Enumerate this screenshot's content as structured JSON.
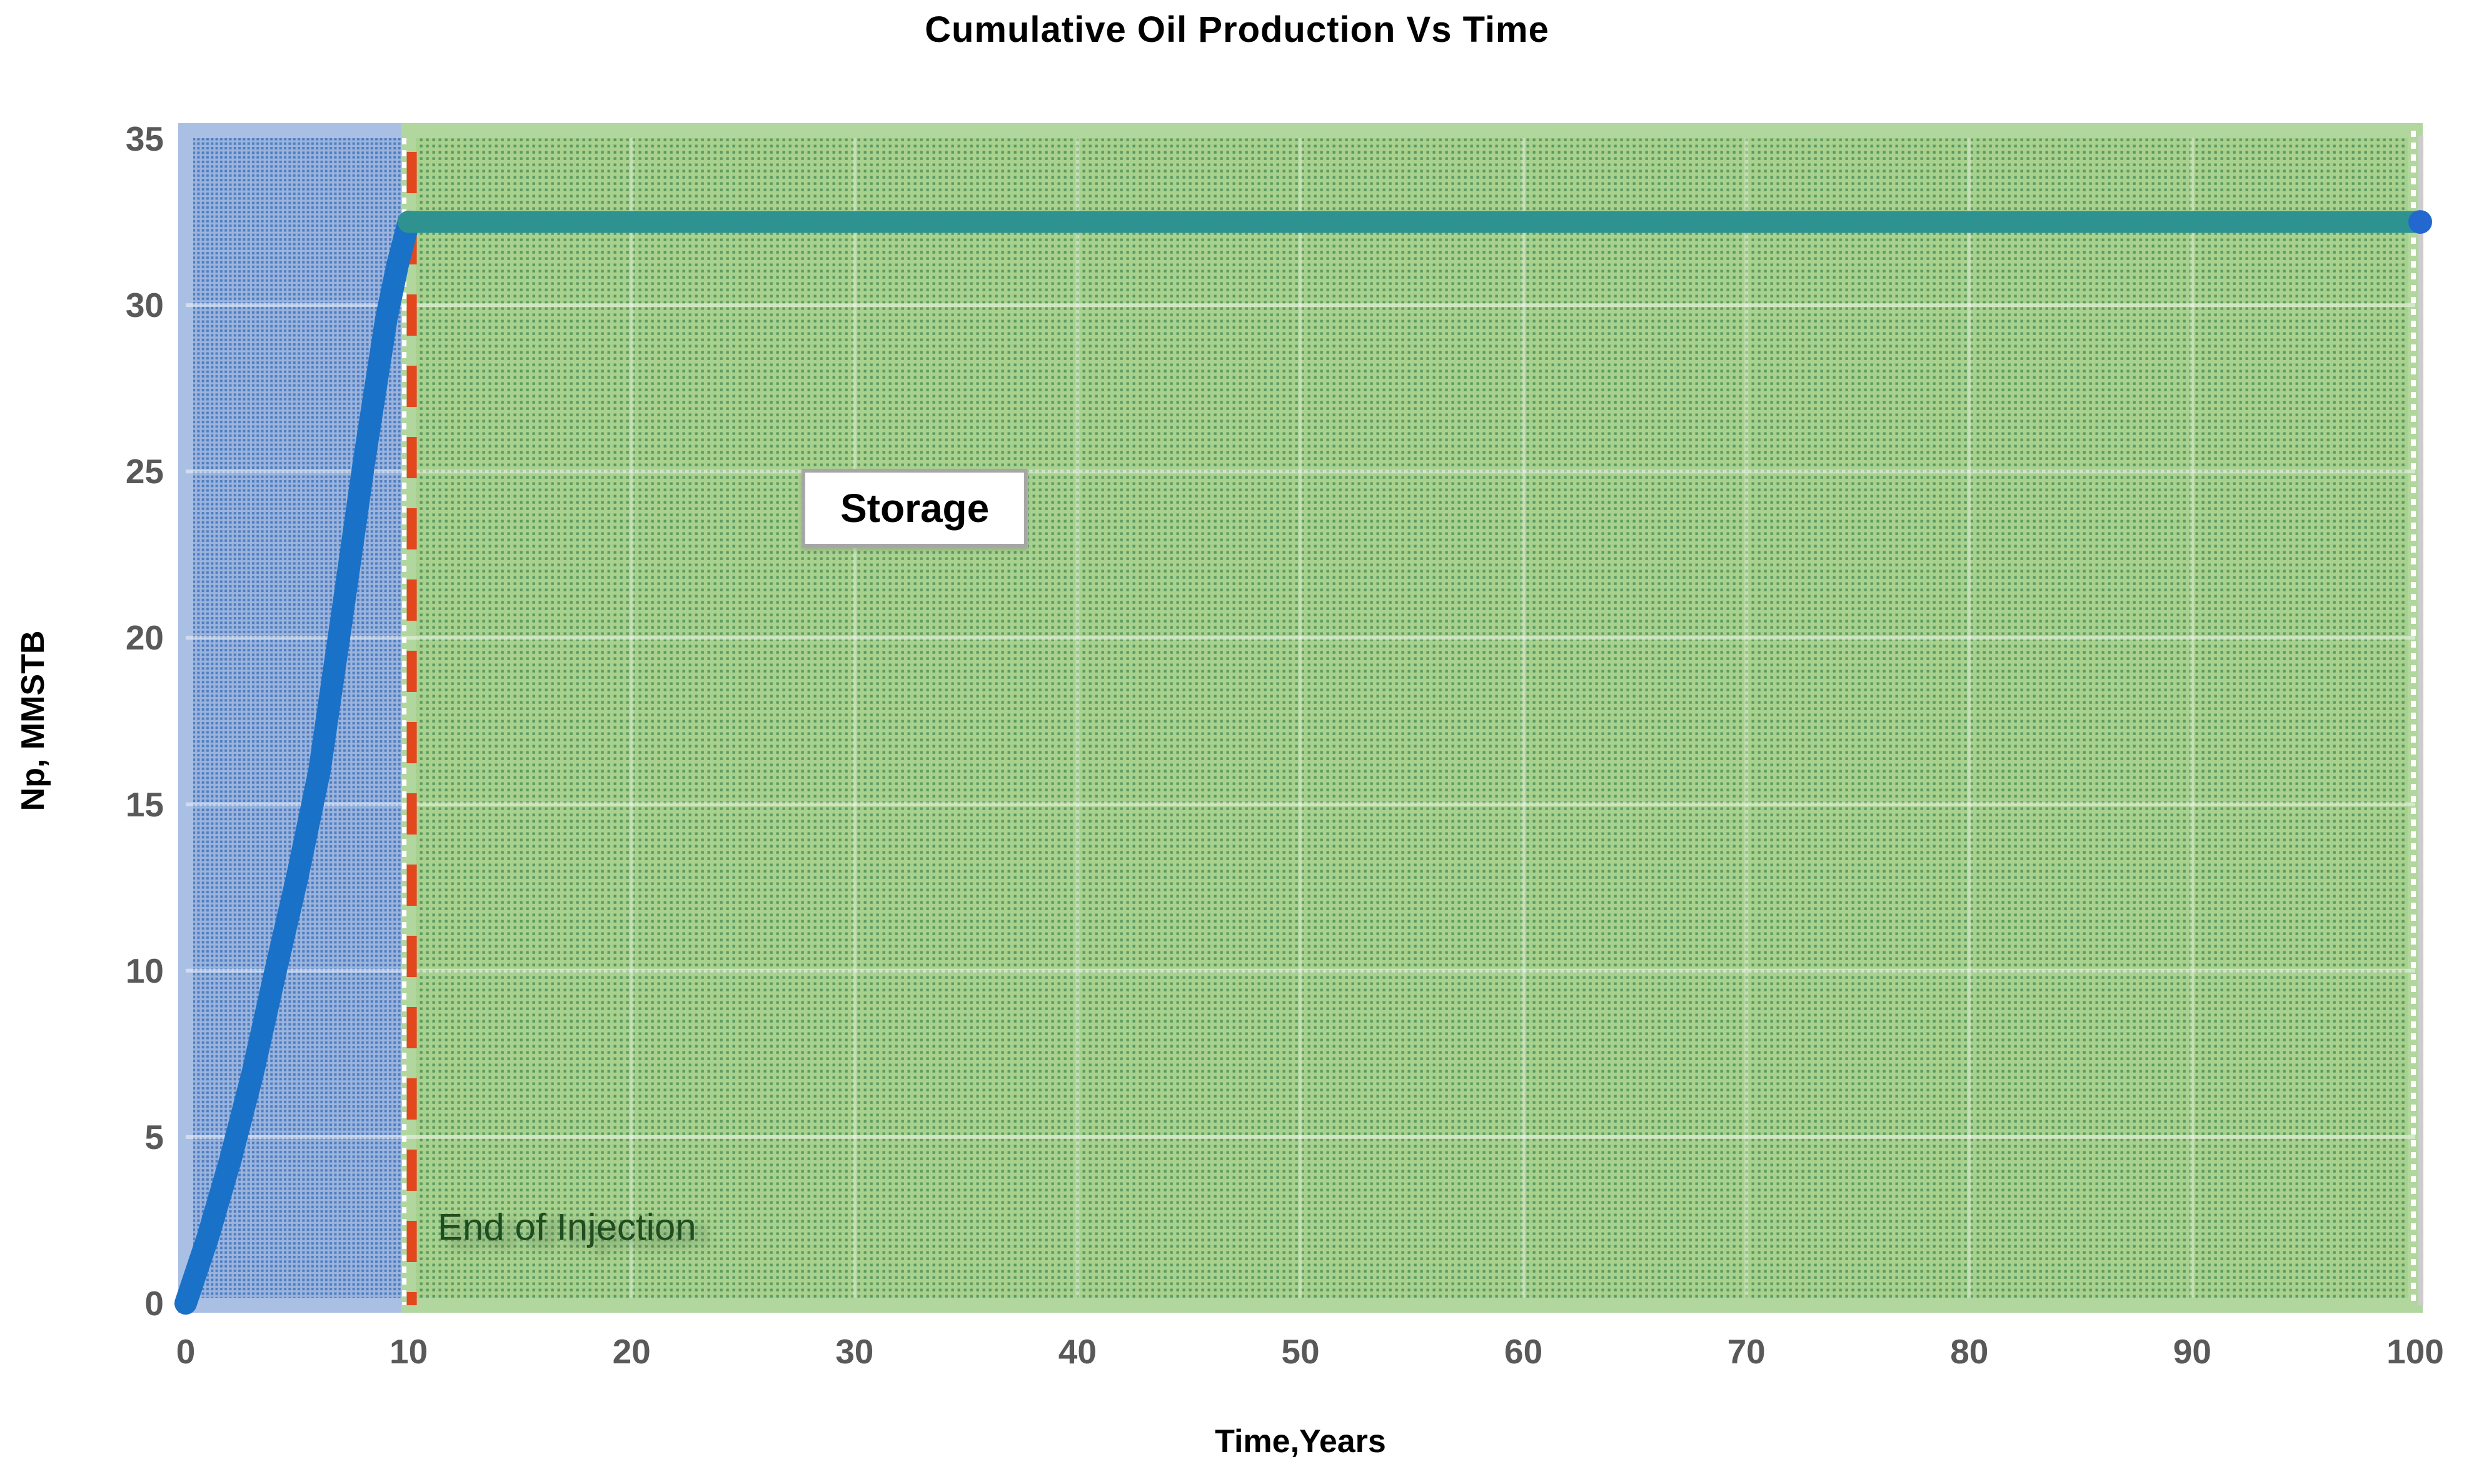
{
  "chart_data": {
    "type": "line",
    "title": "Cumulative Oil Production Vs Time",
    "xlabel": "Time,Years",
    "ylabel": "Np, MMSTB",
    "xlim": [
      0,
      100
    ],
    "ylim": [
      0,
      35
    ],
    "xticks": [
      0,
      10,
      20,
      30,
      40,
      50,
      60,
      70,
      80,
      90,
      100
    ],
    "yticks": [
      0,
      5,
      10,
      15,
      20,
      25,
      30,
      35
    ],
    "grid": "on",
    "legend": "none",
    "axis_text_color": "#595959",
    "gridline_color_h": "rgba(255,255,255,0.45)",
    "gridline_color_v": "rgba(255,255,255,0.32)",
    "series": [
      {
        "name": "cumulative-oil-production",
        "color": "#1a72c8",
        "stroke_width": 36,
        "points": [
          [
            0,
            0
          ],
          [
            1,
            2
          ],
          [
            2,
            4.3
          ],
          [
            3,
            6.9
          ],
          [
            4,
            9.9
          ],
          [
            5,
            12.8
          ],
          [
            6,
            16
          ],
          [
            7,
            20.6
          ],
          [
            8,
            25.3
          ],
          [
            9,
            29.6
          ],
          [
            9.5,
            31.2
          ],
          [
            10,
            32.5
          ]
        ]
      },
      {
        "name": "storage-plateau",
        "color": "#2e9390",
        "stroke_width": 35,
        "points": [
          [
            10,
            32.5
          ],
          [
            100,
            32.5
          ]
        ],
        "end_marker": {
          "x": 100,
          "y": 32.5,
          "color": "#2268cf",
          "radius": 19
        }
      }
    ],
    "regions": [
      {
        "name": "injection-period",
        "x0": 0,
        "x1": 10,
        "fill": "#9bb4dd",
        "dot_color": "#4f7ec2",
        "border": "#a9bfe4",
        "dot_period": 7.3,
        "dot_size": 4
      },
      {
        "name": "storage-period",
        "x0": 10,
        "x1": 100,
        "fill": "#a9d18e",
        "dot_color": "#5a9a62",
        "border": "#b1d69e",
        "dot_period": 10,
        "dot_size": 4.3
      }
    ],
    "vline": {
      "x": 10,
      "color": "#e2471d",
      "width": 16,
      "dash": [
        66,
        48
      ],
      "white_edge_dash": [
        10,
        9
      ]
    },
    "right_edge": {
      "white_dash": [
        10,
        9
      ],
      "shadow_color": "#cccccc"
    },
    "annotations": [
      {
        "id": "storage",
        "text": "Storage",
        "x": 32.7,
        "y": 23.9,
        "boxed": true,
        "color": "#000000"
      },
      {
        "id": "end-of-injection",
        "text": "End of Injection",
        "x": 11.3,
        "y": 2.3,
        "boxed": false,
        "color": "#204d1f"
      }
    ]
  }
}
